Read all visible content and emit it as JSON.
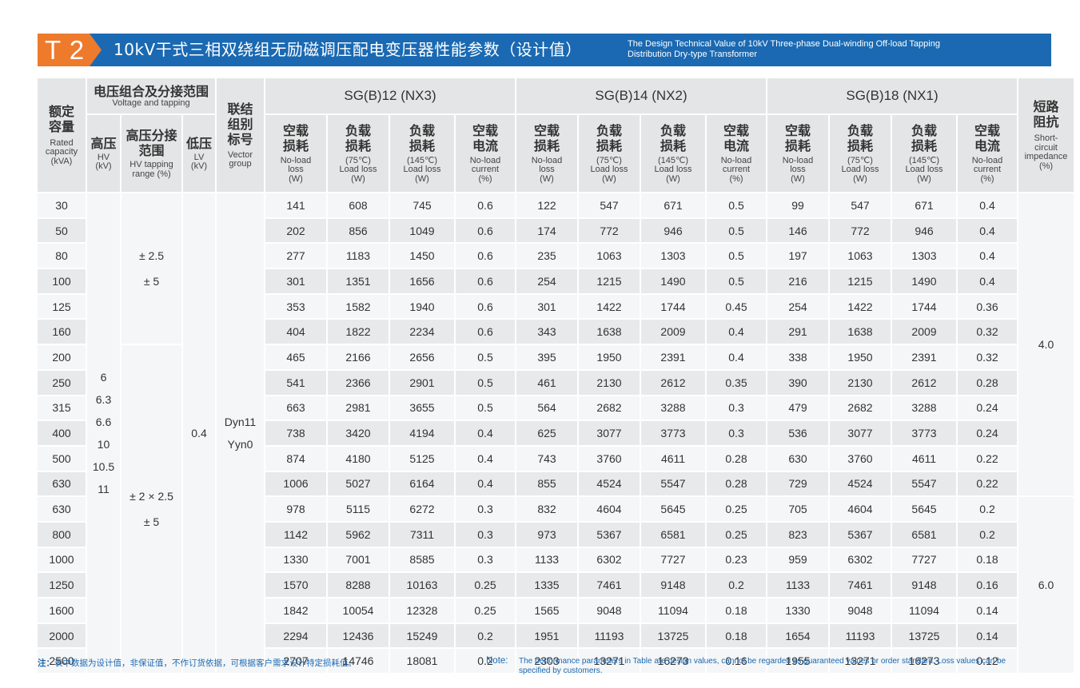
{
  "header": {
    "tag": "T 2",
    "title_cn": "10kV干式三相双绕组无励磁调压配电变压器性能参数（设计值）",
    "title_en_line1": "The Design Technical Value of 10kV Three-phase Dual-winding Off-load Tapping",
    "title_en_line2": "Distribution Dry-type Transformer",
    "colors": {
      "band": "#1a69b2",
      "tag": "#ee7a2c"
    }
  },
  "table": {
    "rated": {
      "cn1": "额定",
      "cn2": "容量",
      "en1": "Rated",
      "en2": "capacity",
      "en3": "(kVA)"
    },
    "voltage_group": {
      "cn": "电压组合及分接范围",
      "en": "Voltage and tapping"
    },
    "hv": {
      "cn": "高压",
      "en1": "HV",
      "en2": "(kV)"
    },
    "tapping": {
      "cn1": "高压分接",
      "cn2": "范围",
      "en1": "HV tapping",
      "en2": "range (%)"
    },
    "lv": {
      "cn": "低压",
      "en1": "LV",
      "en2": "(kV)"
    },
    "vector": {
      "cn1": "联结",
      "cn2": "组别",
      "cn3": "标号",
      "en1": "Vector",
      "en2": "group"
    },
    "impedance": {
      "cn1": "短路",
      "cn2": "阻抗",
      "en1": "Short-",
      "en2": "circuit",
      "en3": "impedance",
      "en4": "(%)"
    },
    "groups": [
      "SG(B)12 (NX3)",
      "SG(B)14 (NX2)",
      "SG(B)18 (NX1)"
    ],
    "subheaders": [
      {
        "cn1": "空载",
        "cn2": "损耗",
        "en1": "No-load",
        "en2": "loss",
        "en3": "(W)"
      },
      {
        "cn1": "负载",
        "cn2": "损耗",
        "en1": "(75℃)",
        "en2": "Load loss",
        "en3": "(W)"
      },
      {
        "cn1": "负载",
        "cn2": "损耗",
        "en1": "(145℃)",
        "en2": "Load loss",
        "en3": "(W)"
      },
      {
        "cn1": "空载",
        "cn2": "电流",
        "en1": "No-load",
        "en2": "current",
        "en3": "(%)"
      }
    ],
    "hv_values": [
      "6",
      "6.3",
      "6.6",
      "10",
      "10.5",
      "11"
    ],
    "tap_range_1": [
      "± 2.5",
      "± 5"
    ],
    "tap_range_2": [
      "± 2 × 2.5",
      "± 5"
    ],
    "lv_value": "0.4",
    "vector_values": [
      "Dyn11",
      "Yyn0"
    ],
    "impedance_values": [
      "4.0",
      "6.0"
    ],
    "rows": [
      [
        "30",
        "141",
        "608",
        "745",
        "0.6",
        "122",
        "547",
        "671",
        "0.5",
        "99",
        "547",
        "671",
        "0.4"
      ],
      [
        "50",
        "202",
        "856",
        "1049",
        "0.6",
        "174",
        "772",
        "946",
        "0.5",
        "146",
        "772",
        "946",
        "0.4"
      ],
      [
        "80",
        "277",
        "1183",
        "1450",
        "0.6",
        "235",
        "1063",
        "1303",
        "0.5",
        "197",
        "1063",
        "1303",
        "0.4"
      ],
      [
        "100",
        "301",
        "1351",
        "1656",
        "0.6",
        "254",
        "1215",
        "1490",
        "0.5",
        "216",
        "1215",
        "1490",
        "0.4"
      ],
      [
        "125",
        "353",
        "1582",
        "1940",
        "0.6",
        "301",
        "1422",
        "1744",
        "0.45",
        "254",
        "1422",
        "1744",
        "0.36"
      ],
      [
        "160",
        "404",
        "1822",
        "2234",
        "0.6",
        "343",
        "1638",
        "2009",
        "0.4",
        "291",
        "1638",
        "2009",
        "0.32"
      ],
      [
        "200",
        "465",
        "2166",
        "2656",
        "0.5",
        "395",
        "1950",
        "2391",
        "0.4",
        "338",
        "1950",
        "2391",
        "0.32"
      ],
      [
        "250",
        "541",
        "2366",
        "2901",
        "0.5",
        "461",
        "2130",
        "2612",
        "0.35",
        "390",
        "2130",
        "2612",
        "0.28"
      ],
      [
        "315",
        "663",
        "2981",
        "3655",
        "0.5",
        "564",
        "2682",
        "3288",
        "0.3",
        "479",
        "2682",
        "3288",
        "0.24"
      ],
      [
        "400",
        "738",
        "3420",
        "4194",
        "0.4",
        "625",
        "3077",
        "3773",
        "0.3",
        "536",
        "3077",
        "3773",
        "0.24"
      ],
      [
        "500",
        "874",
        "4180",
        "5125",
        "0.4",
        "743",
        "3760",
        "4611",
        "0.28",
        "630",
        "3760",
        "4611",
        "0.22"
      ],
      [
        "630",
        "1006",
        "5027",
        "6164",
        "0.4",
        "855",
        "4524",
        "5547",
        "0.28",
        "729",
        "4524",
        "5547",
        "0.22"
      ],
      [
        "630",
        "978",
        "5115",
        "6272",
        "0.3",
        "832",
        "4604",
        "5645",
        "0.25",
        "705",
        "4604",
        "5645",
        "0.2"
      ],
      [
        "800",
        "1142",
        "5962",
        "7311",
        "0.3",
        "973",
        "5367",
        "6581",
        "0.25",
        "823",
        "5367",
        "6581",
        "0.2"
      ],
      [
        "1000",
        "1330",
        "7001",
        "8585",
        "0.3",
        "1133",
        "6302",
        "7727",
        "0.23",
        "959",
        "6302",
        "7727",
        "0.18"
      ],
      [
        "1250",
        "1570",
        "8288",
        "10163",
        "0.25",
        "1335",
        "7461",
        "9148",
        "0.2",
        "1133",
        "7461",
        "9148",
        "0.16"
      ],
      [
        "1600",
        "1842",
        "10054",
        "12328",
        "0.25",
        "1565",
        "9048",
        "11094",
        "0.18",
        "1330",
        "9048",
        "11094",
        "0.14"
      ],
      [
        "2000",
        "2294",
        "12436",
        "15249",
        "0.2",
        "1951",
        "11193",
        "13725",
        "0.18",
        "1654",
        "11193",
        "13725",
        "0.14"
      ],
      [
        "2500",
        "2707",
        "14746",
        "18081",
        "0.2",
        "2303",
        "13271",
        "16273",
        "0.16",
        "1955",
        "13271",
        "16273",
        "0.12"
      ]
    ]
  },
  "notes": {
    "cn_label": "注：",
    "cn_text": "表中数据为设计值，非保证值，不作订货依据，可根据客户需求设计特定损耗值。",
    "en_label": "Note:",
    "en_text": "The performance parameters in Table are design values, cannot be regarded as guaranteed values or order standard. Loss values can be specified by customers."
  }
}
